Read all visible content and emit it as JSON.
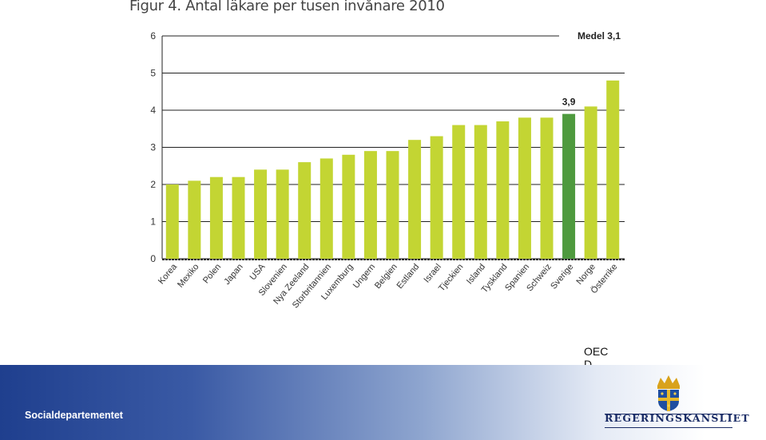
{
  "title": "Figur 4. Antal läkare per tusen invånare 2010",
  "source": "OECD",
  "footer": {
    "department": "Socialdepartementet",
    "logo_text": "REGERINGSKANSLIET"
  },
  "colors": {
    "bar": "#c3d533",
    "highlight": "#4e9a3e",
    "footer_dark": "#1f3f8e",
    "logo": "#1a2c66"
  },
  "chart_data": {
    "type": "bar",
    "title": "Figur 4. Antal läkare per tusen invånare 2010",
    "xlabel": "",
    "ylabel": "",
    "ylim": [
      0,
      6
    ],
    "yticks": [
      0,
      1,
      2,
      3,
      4,
      5,
      6
    ],
    "grid": true,
    "categories": [
      "Korea",
      "Mexiko",
      "Polen",
      "Japan",
      "USA",
      "Slovenien",
      "Nya Zeeland",
      "Storbritannien",
      "Luxemburg",
      "Ungern",
      "Belgien",
      "Estland",
      "Israel",
      "Tjeckien",
      "Island",
      "Tyskland",
      "Spanien",
      "Schweiz",
      "Sverige",
      "Norge",
      "Österrike"
    ],
    "values": [
      2.0,
      2.1,
      2.2,
      2.2,
      2.4,
      2.4,
      2.6,
      2.7,
      2.8,
      2.9,
      2.9,
      3.2,
      3.3,
      3.6,
      3.6,
      3.7,
      3.8,
      3.8,
      3.9,
      4.1,
      4.8
    ],
    "highlight_category": "Sverige",
    "annotations": [
      {
        "category": "Sverige",
        "text": "3,9"
      }
    ],
    "legend_text": "Medel 3,1"
  }
}
